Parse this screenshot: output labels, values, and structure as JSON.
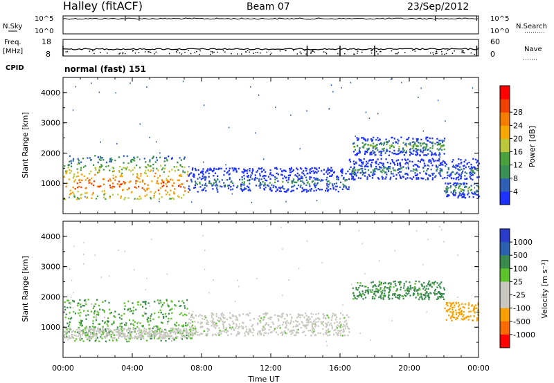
{
  "header": {
    "title": "Halley (fitACF)",
    "beam": "Beam 07",
    "date": "23/Sep/2012"
  },
  "strips": {
    "nsky": {
      "label": "N.Sky",
      "right_label": "N.Search",
      "y_ticks_left": [
        "10^5",
        "10^0"
      ],
      "y_ticks_right": [
        "10^5",
        "10^0"
      ]
    },
    "freq": {
      "label_line1": "Freq.",
      "label_line2": "[MHz]",
      "right_label": "Nave",
      "y_ticks_left": [
        "18",
        "8"
      ],
      "y_ticks_right": [
        "60",
        "0"
      ]
    },
    "cpid": {
      "label": "CPID",
      "value": "normal (fast) 151"
    }
  },
  "chart_data": [
    {
      "type": "heatmap",
      "panel": "power",
      "xlabel": "",
      "ylabel": "Slant Range [km]",
      "ylim": [
        0,
        4500
      ],
      "y_ticks": [
        "1000",
        "2000",
        "3000",
        "4000"
      ],
      "colorbar": {
        "label": "Power [dB]",
        "ticks": [
          "4",
          "8",
          "12",
          "16",
          "20",
          "24",
          "28"
        ],
        "range": [
          0,
          30
        ],
        "colors": [
          "#1e32ff",
          "#2f5fb4",
          "#3a8f55",
          "#4aa03c",
          "#bcc63a",
          "#f7a800",
          "#f47d00",
          "#f04000",
          "#ff0000"
        ]
      },
      "echo_regions": [
        {
          "t_start": 0.0,
          "t_end": 7.2,
          "range_km": [
            450,
            1900
          ],
          "peak_range_km": 950,
          "level_db": 24
        },
        {
          "t_start": 7.2,
          "t_end": 16.5,
          "range_km": [
            700,
            1500
          ],
          "peak_range_km": 1000,
          "level_db": 8
        },
        {
          "t_start": 16.7,
          "t_end": 22.0,
          "range_km": [
            1900,
            2500
          ],
          "peak_range_km": 2200,
          "level_db": 12
        },
        {
          "t_start": 16.5,
          "t_end": 24.0,
          "range_km": [
            1100,
            1800
          ],
          "peak_range_km": 1400,
          "level_db": 8
        },
        {
          "t_start": 22.0,
          "t_end": 24.0,
          "range_km": [
            500,
            1000
          ],
          "peak_range_km": 800,
          "level_db": 12
        }
      ]
    },
    {
      "type": "heatmap",
      "panel": "velocity",
      "xlabel": "Time UT",
      "ylabel": "Slant Range [km]",
      "ylim": [
        0,
        4500
      ],
      "y_ticks": [
        "1000",
        "2000",
        "3000",
        "4000"
      ],
      "x_ticks": [
        "00:00",
        "04:00",
        "08:00",
        "12:00",
        "16:00",
        "20:00",
        "00:00"
      ],
      "colorbar": {
        "label": "Velocity [m s⁻¹]",
        "ticks": [
          "1000",
          "500",
          "100",
          "25",
          "-25",
          "-100",
          "-500",
          "-1000"
        ],
        "colors": [
          "#2a3cc8",
          "#2b5fb0",
          "#3a8a4e",
          "#5cc12a",
          "#c8c8c0",
          "#c8c8c0",
          "#f7a000",
          "#f76a00",
          "#ff0000"
        ]
      },
      "echo_regions": [
        {
          "t_start": 0.0,
          "t_end": 7.2,
          "range_km": [
            500,
            1900
          ],
          "velocity_ms": 100
        },
        {
          "t_start": 0.0,
          "t_end": 7.5,
          "range_km": [
            600,
            950
          ],
          "velocity_ms": 0
        },
        {
          "t_start": 7.2,
          "t_end": 16.5,
          "range_km": [
            700,
            1450
          ],
          "velocity_ms": 0
        },
        {
          "t_start": 16.7,
          "t_end": 22.0,
          "range_km": [
            1900,
            2500
          ],
          "velocity_ms": 200
        },
        {
          "t_start": 22.0,
          "t_end": 24.0,
          "range_km": [
            1200,
            1800
          ],
          "velocity_ms": -300
        }
      ]
    }
  ]
}
